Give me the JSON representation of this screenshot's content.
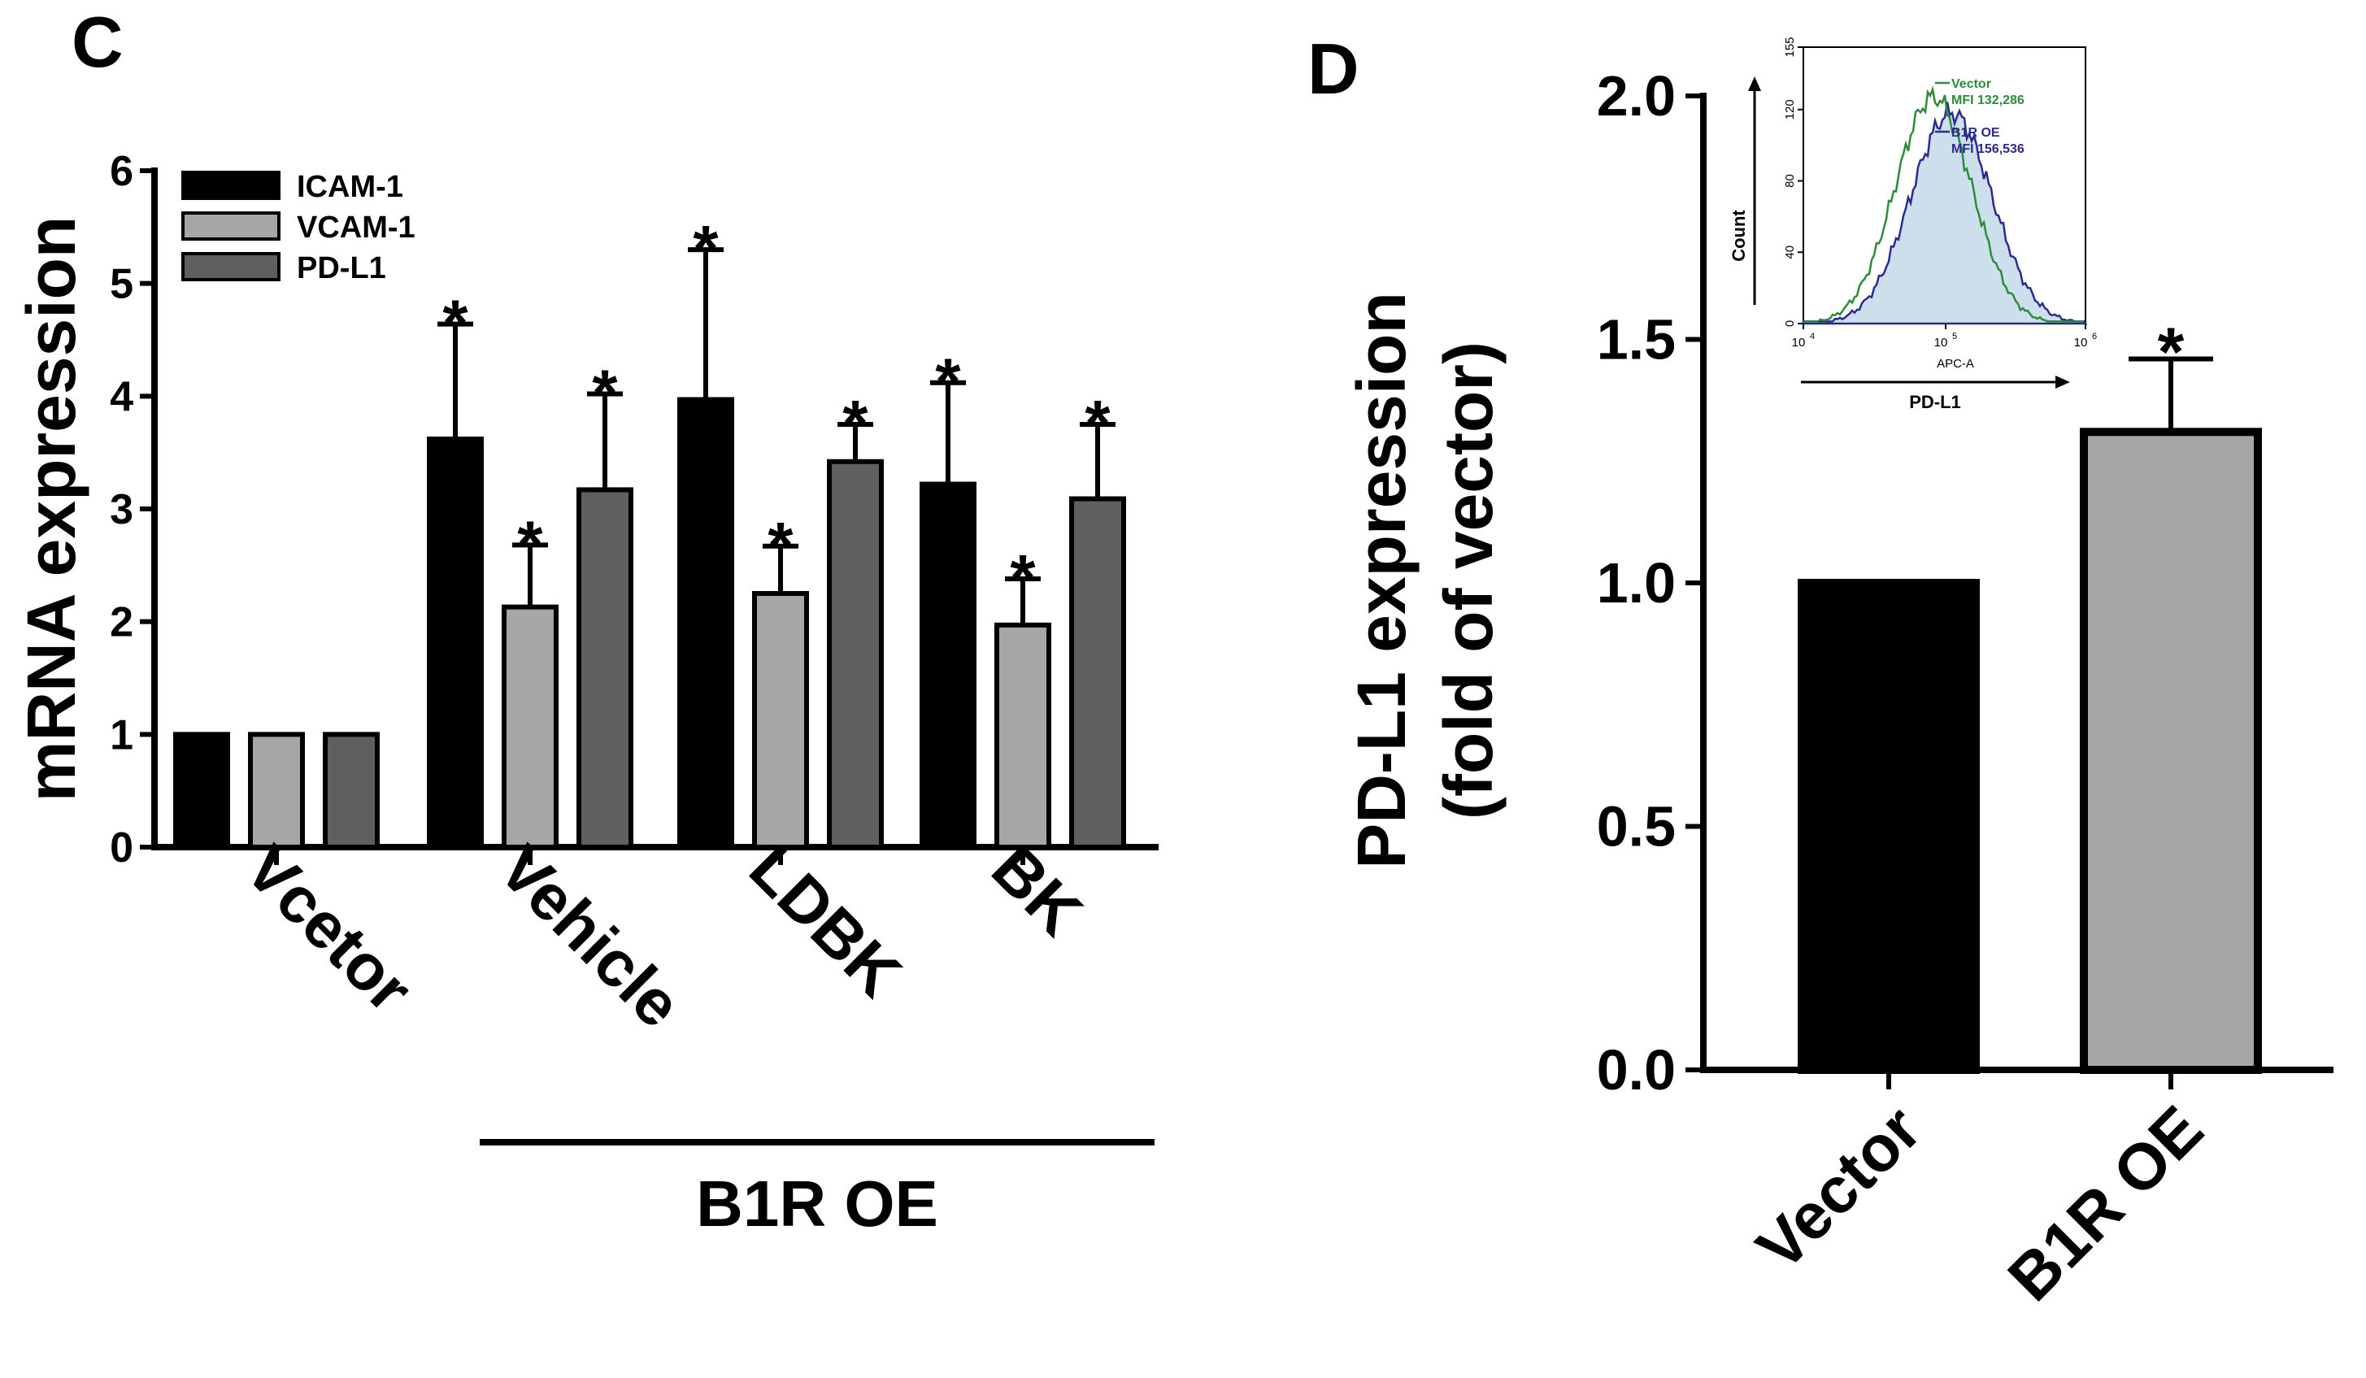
{
  "panels": {
    "c_letter": "C",
    "d_letter": "D"
  },
  "chart_data": [
    {
      "type": "bar",
      "panel": "C",
      "ylabel": "mRNA expression",
      "ylim": [
        0,
        6
      ],
      "yticks": [
        "0",
        "1",
        "2",
        "3",
        "4",
        "5",
        "6"
      ],
      "categories": [
        "Vcetor",
        "Vehicle",
        "LDBK",
        "BK"
      ],
      "group_label": "B1R OE",
      "series": [
        {
          "name": "ICAM-1",
          "color": "#000000",
          "values": [
            1.0,
            3.62,
            3.97,
            3.22
          ],
          "errors": [
            0,
            1.02,
            1.33,
            0.9
          ],
          "sig": [
            "",
            "*",
            "*",
            "*"
          ]
        },
        {
          "name": "VCAM-1",
          "color": "#a6a6a6",
          "values": [
            1.0,
            2.13,
            2.25,
            1.97
          ],
          "errors": [
            0,
            0.55,
            0.42,
            0.41
          ],
          "sig": [
            "",
            "*",
            "*",
            "*"
          ]
        },
        {
          "name": "PD-L1",
          "color": "#5f5f5f",
          "values": [
            1.0,
            3.17,
            3.42,
            3.09
          ],
          "errors": [
            0,
            0.85,
            0.33,
            0.66
          ],
          "sig": [
            "",
            "*",
            "*",
            "*"
          ]
        }
      ]
    },
    {
      "type": "bar",
      "panel": "D",
      "ylabel_line1": "PD-L1 expression",
      "ylabel_line2": "(fold of vector)",
      "ylim": [
        0,
        2.0
      ],
      "yticks": [
        "0.0",
        "0.5",
        "1.0",
        "1.5",
        "2.0"
      ],
      "categories": [
        "Vector",
        "B1R OE"
      ],
      "values": [
        1.0,
        1.31
      ],
      "errors": [
        0,
        0.15
      ],
      "colors": [
        "#000000",
        "#a6a6a6"
      ],
      "sig": [
        "",
        "*"
      ]
    },
    {
      "type": "line",
      "panel": "D-inset",
      "xlabel": "APC-A",
      "xlabel_arrow": "PD-L1",
      "ylabel": "Count",
      "ylim": [
        0,
        155
      ],
      "yticks": [
        "0",
        "40",
        "80",
        "120",
        "155"
      ],
      "xticks": [
        "10",
        "10",
        "10"
      ],
      "xtick_exp": [
        "4",
        "5",
        "6"
      ],
      "series": [
        {
          "name": "Vector",
          "mfi": "MFI 132,286",
          "color": "#2e8b3a"
        },
        {
          "name": "B1R OE",
          "mfi": "MFI 156,536",
          "color": "#2b2b8f"
        }
      ]
    }
  ]
}
